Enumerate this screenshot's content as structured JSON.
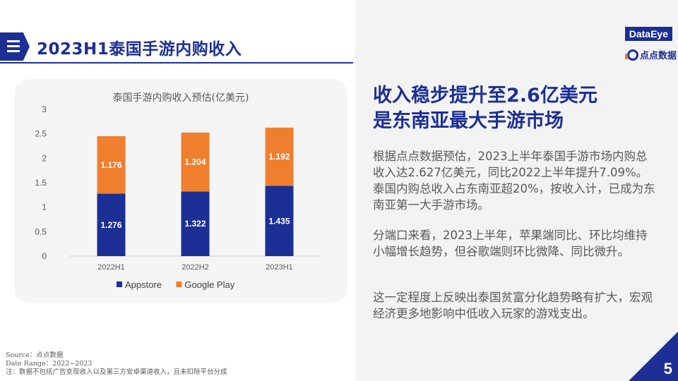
{
  "header": {
    "title": "2023H1泰国手游内购收入",
    "brand": "DataEye",
    "sub_brand": "点点数据"
  },
  "chart_data": {
    "type": "bar",
    "stacked": true,
    "title": "泰国手游内购收入预估(亿美元)",
    "categories": [
      "2022H1",
      "2022H2",
      "2023H1"
    ],
    "series": [
      {
        "name": "Appstore",
        "values": [
          1.276,
          1.322,
          1.435
        ],
        "color": "#1c2f94",
        "label_color": "#ffffff"
      },
      {
        "name": "Google Play",
        "values": [
          1.176,
          1.204,
          1.192
        ],
        "color": "#ef7f2e",
        "label_color": "#ffffff"
      }
    ],
    "yticks": [
      "0",
      "0.5",
      "1",
      "1.5",
      "2",
      "2.5",
      "3"
    ],
    "ylim": [
      0,
      3
    ],
    "legend_position": "bottom"
  },
  "right_panel": {
    "headline_line1": "收入稳步提升至2.6亿美元",
    "headline_line2": "是东南亚最大手游市场",
    "paragraph1": "根据点点数据预估，2023上半年泰国手游市场内购总收入达2.627亿美元，同比2022上半年提升7.09%。泰国内购总收入占东南亚超20%，按收入计，已成为东南亚第一大手游市场。",
    "paragraph2": "分端口来看，2023上半年，苹果端同比、环比均维持小幅增长趋势，但谷歌端则环比微降、同比微升。",
    "paragraph3": "这一定程度上反映出泰国贫富分化趋势略有扩大，宏观经济更多地影响中低收入玩家的游戏支出。"
  },
  "footer": {
    "source": "Source：点点数据",
    "date_range": "Date Range：2022~2023",
    "note": "注：数据不包括广告变现收入以及第三方安卓渠道收入，且未扣除平台分成",
    "page_number": "5"
  },
  "colors": {
    "accent": "#1c2f94",
    "orange": "#ef7f2e"
  }
}
